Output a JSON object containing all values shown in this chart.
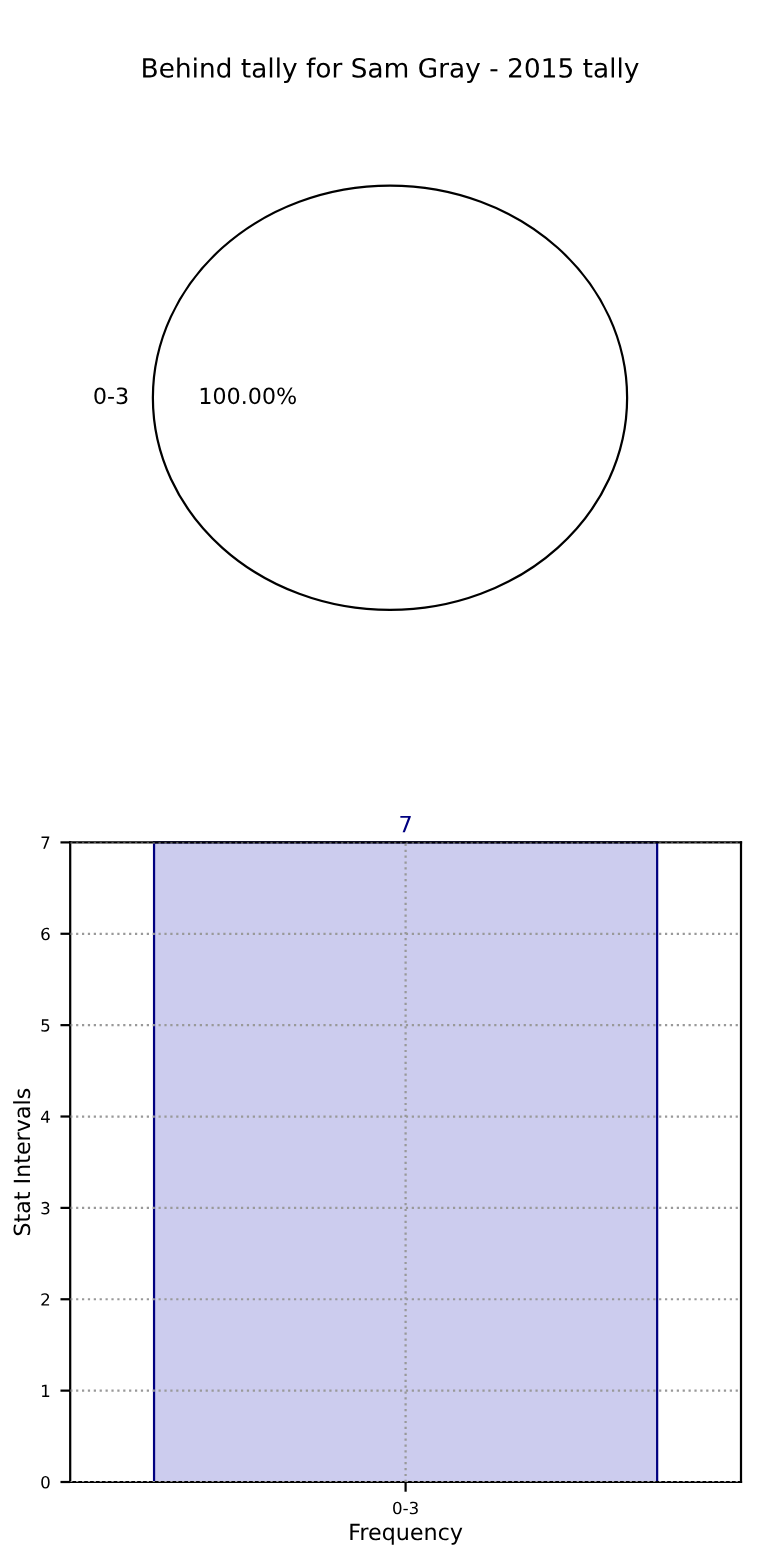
{
  "chart_data": [
    {
      "type": "pie",
      "title": "Behind tally for Sam Gray - 2015 tally",
      "categories": [
        "0-3"
      ],
      "values": [
        100
      ],
      "colors": [
        "#ffffff"
      ],
      "value_labels": [
        "100.00%"
      ]
    },
    {
      "type": "bar",
      "categories": [
        "0-3"
      ],
      "values": [
        7
      ],
      "color": "#ccccee",
      "ylim": [
        0,
        7
      ],
      "yticks": [
        0,
        1,
        2,
        3,
        4,
        5,
        6,
        7
      ],
      "grid": true,
      "data_labels": true,
      "xlabel": "Frequency",
      "ylabel": "Stat Intervals"
    }
  ]
}
